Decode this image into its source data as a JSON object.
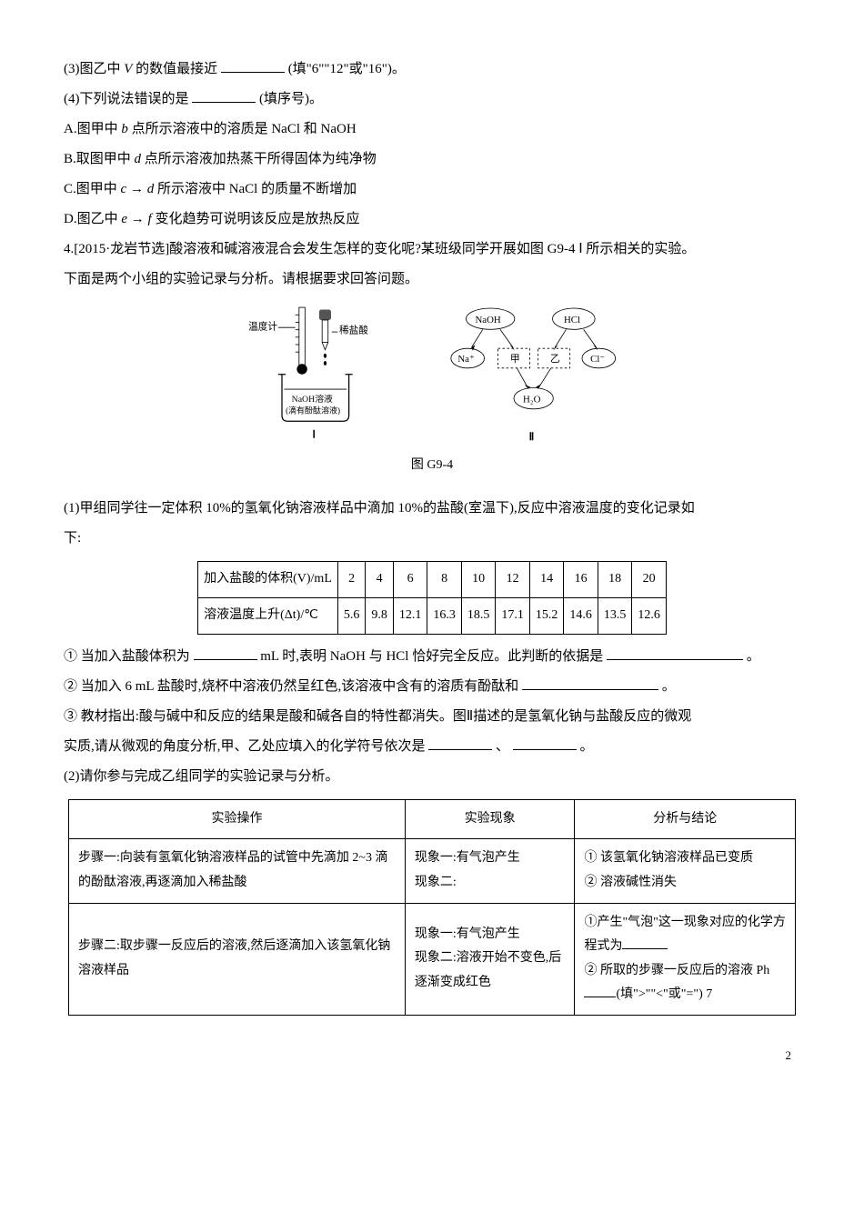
{
  "q3": {
    "p3": "(3)图乙中",
    "p3_var": "V",
    "p3_tail": "的数值最接近",
    "p3_options": "(填\"6\"\"12\"或\"16\")。",
    "p4": "(4)下列说法错误的是",
    "p4_tail": "(填序号)。",
    "A": "A.图甲中",
    "A_var": "b",
    "A_tail": "点所示溶液中的溶质是 NaCl 和 NaOH",
    "B": "B.取图甲中",
    "B_var": "d",
    "B_tail": "点所示溶液加热蒸干所得固体为纯净物",
    "C": "C.图甲中",
    "C_var1": "c",
    "C_arrow": "→",
    "C_var2": "d",
    "C_tail": "所示溶液中 NaCl 的质量不断增加",
    "D": "D.图乙中",
    "D_var1": "e",
    "D_arrow": "→",
    "D_var2": "f",
    "D_tail": "变化趋势可说明该反应是放热反应"
  },
  "q4": {
    "stem1": "4.[2015·龙岩节选]酸溶液和碱溶液混合会发生怎样的变化呢?某班级同学开展如图 G9-4 Ⅰ 所示相关的实验。",
    "stem2": "下面是两个小组的实验记录与分析。请根据要求回答问题。",
    "fig_label": "图 G9-4",
    "diagram": {
      "thermo_label": "温度计",
      "acid_label": "稀盐酸",
      "naoh_label": "NaOH溶液",
      "phenol_label": "(滴有酚酞溶液)",
      "I": "Ⅰ",
      "II": "Ⅱ",
      "naoh": "NaOH",
      "hcl": "HCl",
      "na": "Na⁺",
      "cl": "Cl⁻",
      "jia": "甲",
      "yi": "乙",
      "h2o": "H₂O"
    },
    "p1": "(1)甲组同学往一定体积 10%的氢氧化钠溶液样品中滴加 10%的盐酸(室温下),反应中溶液温度的变化记录如",
    "p1b": "下:",
    "table1": {
      "row1_label": "加入盐酸的体积(V)/mL",
      "row1_vals": [
        "2",
        "4",
        "6",
        "8",
        "10",
        "12",
        "14",
        "16",
        "18",
        "20"
      ],
      "row2_label": "溶液温度上升(Δt)/℃",
      "row2_vals": [
        "5.6",
        "9.8",
        "12.1",
        "16.3",
        "18.5",
        "17.1",
        "15.2",
        "14.6",
        "13.5",
        "12.6"
      ]
    },
    "sub1": "① 当加入盐酸体积为",
    "sub1_mid": "mL 时,表明 NaOH 与 HCl 恰好完全反应。此判断的依据是",
    "sub1_end": "。",
    "sub2": "② 当加入 6 mL 盐酸时,烧杯中溶液仍然呈红色,该溶液中含有的溶质有酚酞和",
    "sub2_end": "。",
    "sub3a": "③ 教材指出:酸与碱中和反应的结果是酸和碱各自的特性都消失。图Ⅱ描述的是氢氧化钠与盐酸反应的微观",
    "sub3b": "实质,请从微观的角度分析,甲、乙处应填入的化学符号依次是",
    "sub3_sep": "、",
    "sub3_end": "。",
    "p2": "(2)请你参与完成乙组同学的实验记录与分析。",
    "table2": {
      "h1": "实验操作",
      "h2": "实验现象",
      "h3": "分析与结论",
      "r1c1": "步骤一:向装有氢氧化钠溶液样品的试管中先滴加 2~3 滴的酚酞溶液,再逐滴加入稀盐酸",
      "r1c2a": "现象一:有气泡产生",
      "r1c2b": "现象二:",
      "r1c3a": "① 该氢氧化钠溶液样品已变质",
      "r1c3b": "② 溶液碱性消失",
      "r2c1": "步骤二:取步骤一反应后的溶液,然后逐滴加入该氢氧化钠溶液样品",
      "r2c2a": "现象一:有气泡产生",
      "r2c2b": "现象二:溶液开始不变色,后逐渐变成红色",
      "r2c3a": "①产生\"气泡\"这一现象对应的化学方程式为",
      "r2c3b": "② 所取的步骤一反应后的溶液 Ph",
      "r2c3c": "(填\">\"\"<\"或\"=\") 7"
    }
  },
  "pagefoot": "2"
}
